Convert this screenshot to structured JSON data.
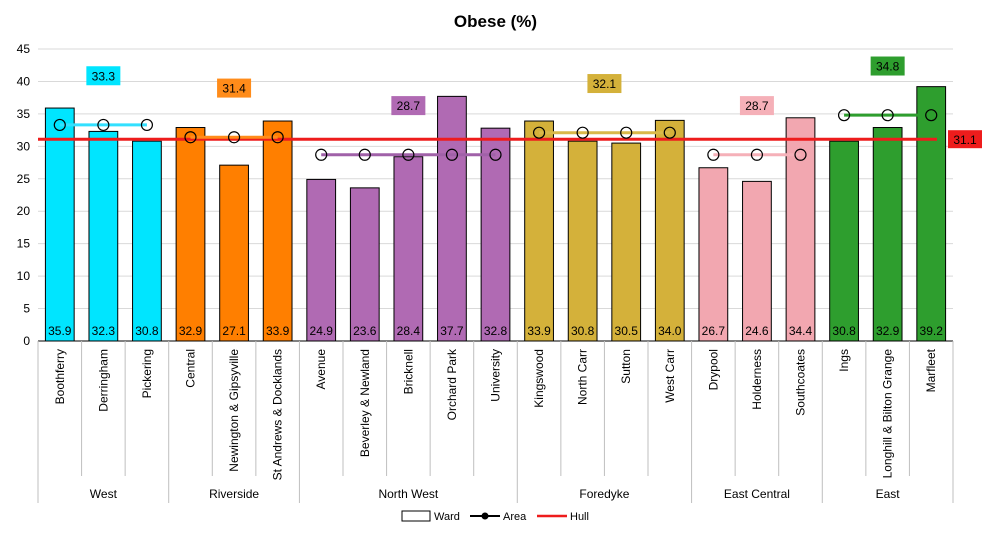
{
  "chart_data": {
    "type": "bar",
    "title": "Obese (%)",
    "xlabel": "",
    "ylabel": "",
    "ylim": [
      0,
      45
    ],
    "yticks": [
      0,
      5,
      10,
      15,
      20,
      25,
      30,
      35,
      40,
      45
    ],
    "grid": true,
    "legend_position": "bottom",
    "legend": [
      {
        "label": "Ward",
        "kind": "bar"
      },
      {
        "label": "Area",
        "kind": "line-marker"
      },
      {
        "label": "Hull",
        "kind": "line"
      }
    ],
    "hull_value": 31.1,
    "hull_color": "#ee1c1c",
    "groups": [
      {
        "name": "West",
        "area_value": 33.3,
        "color": "#00e5ff",
        "line_color": "#33e0ff",
        "label_bg": "#00e5ff",
        "wards": [
          {
            "name": "Boothferry",
            "value": 35.9
          },
          {
            "name": "Derringham",
            "value": 32.3
          },
          {
            "name": "Pickering",
            "value": 30.8
          }
        ]
      },
      {
        "name": "Riverside",
        "area_value": 31.4,
        "color": "#ff7f00",
        "line_color": "#ff8c1a",
        "label_bg": "#ff8c1a",
        "wards": [
          {
            "name": "Central",
            "value": 32.9
          },
          {
            "name": "Newington & Gipsyville",
            "value": 27.1
          },
          {
            "name": "St Andrews & Docklands",
            "value": 33.9
          }
        ]
      },
      {
        "name": "North West",
        "area_value": 28.7,
        "color": "#b06ab3",
        "line_color": "#a061a8",
        "label_bg": "#b06ab3",
        "wards": [
          {
            "name": "Avenue",
            "value": 24.9
          },
          {
            "name": "Beverley & Newland",
            "value": 23.6
          },
          {
            "name": "Bricknell",
            "value": 28.4
          },
          {
            "name": "Orchard Park",
            "value": 37.7
          },
          {
            "name": "University",
            "value": 32.8
          }
        ]
      },
      {
        "name": "Foredyke",
        "area_value": 32.1,
        "color": "#d4b13a",
        "line_color": "#d9b94a",
        "label_bg": "#d4b13a",
        "wards": [
          {
            "name": "Kingswood",
            "value": 33.9
          },
          {
            "name": "North Carr",
            "value": 30.8
          },
          {
            "name": "Sutton",
            "value": 30.5
          },
          {
            "name": "West Carr",
            "value": 34.0
          }
        ]
      },
      {
        "name": "East Central",
        "area_value": 28.7,
        "color": "#f2a7b0",
        "line_color": "#f5b0b8",
        "label_bg": "#f5b0b8",
        "wards": [
          {
            "name": "Drypool",
            "value": 26.7
          },
          {
            "name": "Holderness",
            "value": 24.6
          },
          {
            "name": "Southcoates",
            "value": 34.4
          }
        ]
      },
      {
        "name": "East",
        "area_value": 34.8,
        "color": "#2e9e2e",
        "line_color": "#2e9e2e",
        "label_bg": "#2e9e2e",
        "wards": [
          {
            "name": "Ings",
            "value": 30.8
          },
          {
            "name": "Longhill & Bilton Grange",
            "value": 32.9
          },
          {
            "name": "Marfleet",
            "value": 39.2
          }
        ]
      }
    ]
  }
}
